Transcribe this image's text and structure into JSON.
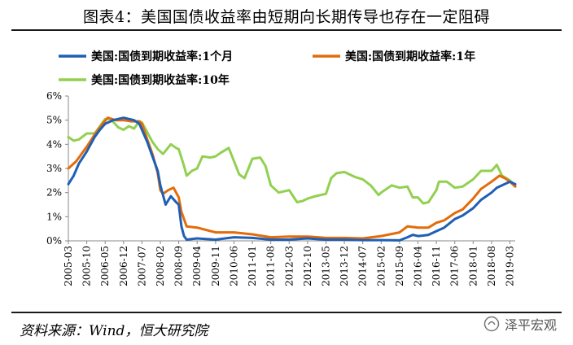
{
  "figure": {
    "title": "图表4：美国国债收益率由短期向长期传导也存在一定阻碍",
    "source": "资料来源：Wind，恒大研究院",
    "watermark": "泽平宏观"
  },
  "chart_data": {
    "type": "line",
    "title": "",
    "xlabel": "",
    "ylabel": "",
    "ylim": [
      0,
      6
    ],
    "ytick_labels": [
      "0%",
      "1%",
      "2%",
      "3%",
      "4%",
      "5%",
      "6%"
    ],
    "x_tick_labels": [
      "2005-03",
      "2005-10",
      "2006-05",
      "2006-12",
      "2007-07",
      "2008-02",
      "2008-09",
      "2009-04",
      "2009-11",
      "2010-06",
      "2011-01",
      "2011-08",
      "2012-03",
      "2012-10",
      "2013-05",
      "2013-12",
      "2014-07",
      "2015-02",
      "2015-09",
      "2016-04",
      "2016-11",
      "2017-06",
      "2018-01",
      "2018-08",
      "2019-03"
    ],
    "x_start": "2005-03",
    "x_end": "2019-05",
    "legend": "top, three entries in two rows",
    "grid": false,
    "series": [
      {
        "name": "美国:国债到期收益率:1个月",
        "color": "#1f5fb4",
        "points": [
          [
            "2005-03",
            2.35
          ],
          [
            "2005-05",
            2.7
          ],
          [
            "2005-07",
            3.2
          ],
          [
            "2005-10",
            3.7
          ],
          [
            "2006-01",
            4.3
          ],
          [
            "2006-03",
            4.6
          ],
          [
            "2006-05",
            4.85
          ],
          [
            "2006-08",
            5.0
          ],
          [
            "2006-10",
            5.05
          ],
          [
            "2006-12",
            5.1
          ],
          [
            "2007-02",
            5.05
          ],
          [
            "2007-04",
            5.0
          ],
          [
            "2007-06",
            4.85
          ],
          [
            "2007-07",
            4.6
          ],
          [
            "2007-09",
            4.1
          ],
          [
            "2007-11",
            3.5
          ],
          [
            "2008-01",
            2.9
          ],
          [
            "2008-02",
            2.3
          ],
          [
            "2008-04",
            1.5
          ],
          [
            "2008-06",
            1.85
          ],
          [
            "2008-08",
            1.6
          ],
          [
            "2008-09",
            1.5
          ],
          [
            "2008-10",
            0.6
          ],
          [
            "2008-11",
            0.2
          ],
          [
            "2008-12",
            0.05
          ],
          [
            "2009-04",
            0.1
          ],
          [
            "2009-11",
            0.05
          ],
          [
            "2010-06",
            0.15
          ],
          [
            "2011-01",
            0.12
          ],
          [
            "2011-08",
            0.05
          ],
          [
            "2012-03",
            0.05
          ],
          [
            "2012-10",
            0.1
          ],
          [
            "2013-05",
            0.05
          ],
          [
            "2013-12",
            0.05
          ],
          [
            "2014-07",
            0.03
          ],
          [
            "2015-02",
            0.03
          ],
          [
            "2015-09",
            0.02
          ],
          [
            "2015-12",
            0.15
          ],
          [
            "2016-02",
            0.25
          ],
          [
            "2016-04",
            0.2
          ],
          [
            "2016-06",
            0.22
          ],
          [
            "2016-08",
            0.25
          ],
          [
            "2016-11",
            0.4
          ],
          [
            "2017-02",
            0.55
          ],
          [
            "2017-06",
            0.9
          ],
          [
            "2017-09",
            1.05
          ],
          [
            "2018-01",
            1.35
          ],
          [
            "2018-04",
            1.7
          ],
          [
            "2018-08",
            2.0
          ],
          [
            "2018-10",
            2.2
          ],
          [
            "2019-01",
            2.35
          ],
          [
            "2019-03",
            2.45
          ],
          [
            "2019-05",
            2.35
          ]
        ]
      },
      {
        "name": "美国:国债到期收益率:1年",
        "color": "#e36c0a",
        "points": [
          [
            "2005-03",
            3.0
          ],
          [
            "2005-06",
            3.3
          ],
          [
            "2005-10",
            3.9
          ],
          [
            "2006-01",
            4.4
          ],
          [
            "2006-04",
            4.85
          ],
          [
            "2006-06",
            5.1
          ],
          [
            "2006-09",
            5.0
          ],
          [
            "2006-12",
            5.0
          ],
          [
            "2007-03",
            4.95
          ],
          [
            "2007-06",
            4.95
          ],
          [
            "2007-07",
            4.85
          ],
          [
            "2007-09",
            4.2
          ],
          [
            "2007-11",
            3.6
          ],
          [
            "2008-01",
            2.8
          ],
          [
            "2008-02",
            2.1
          ],
          [
            "2008-03",
            1.95
          ],
          [
            "2008-05",
            2.1
          ],
          [
            "2008-07",
            2.2
          ],
          [
            "2008-09",
            1.8
          ],
          [
            "2008-10",
            1.2
          ],
          [
            "2008-12",
            0.6
          ],
          [
            "2009-04",
            0.55
          ],
          [
            "2009-11",
            0.35
          ],
          [
            "2010-06",
            0.35
          ],
          [
            "2011-01",
            0.27
          ],
          [
            "2011-08",
            0.15
          ],
          [
            "2012-03",
            0.18
          ],
          [
            "2012-10",
            0.18
          ],
          [
            "2013-05",
            0.12
          ],
          [
            "2013-12",
            0.12
          ],
          [
            "2014-07",
            0.1
          ],
          [
            "2015-02",
            0.2
          ],
          [
            "2015-09",
            0.35
          ],
          [
            "2015-12",
            0.6
          ],
          [
            "2016-04",
            0.55
          ],
          [
            "2016-08",
            0.55
          ],
          [
            "2016-11",
            0.75
          ],
          [
            "2017-02",
            0.85
          ],
          [
            "2017-06",
            1.15
          ],
          [
            "2017-09",
            1.3
          ],
          [
            "2018-01",
            1.75
          ],
          [
            "2018-04",
            2.15
          ],
          [
            "2018-08",
            2.45
          ],
          [
            "2018-11",
            2.7
          ],
          [
            "2019-01",
            2.6
          ],
          [
            "2019-03",
            2.45
          ],
          [
            "2019-05",
            2.25
          ]
        ]
      },
      {
        "name": "美国:国债到期收益率:10年",
        "color": "#92d050",
        "points": [
          [
            "2005-03",
            4.3
          ],
          [
            "2005-05",
            4.15
          ],
          [
            "2005-07",
            4.2
          ],
          [
            "2005-10",
            4.45
          ],
          [
            "2006-01",
            4.45
          ],
          [
            "2006-03",
            4.75
          ],
          [
            "2006-05",
            5.05
          ],
          [
            "2006-07",
            5.05
          ],
          [
            "2006-10",
            4.7
          ],
          [
            "2006-12",
            4.6
          ],
          [
            "2007-02",
            4.75
          ],
          [
            "2007-04",
            4.65
          ],
          [
            "2007-06",
            4.95
          ],
          [
            "2007-07",
            4.9
          ],
          [
            "2007-09",
            4.5
          ],
          [
            "2007-11",
            4.1
          ],
          [
            "2008-01",
            3.8
          ],
          [
            "2008-03",
            3.6
          ],
          [
            "2008-06",
            4.0
          ],
          [
            "2008-08",
            3.85
          ],
          [
            "2008-09",
            3.8
          ],
          [
            "2008-11",
            3.1
          ],
          [
            "2008-12",
            2.7
          ],
          [
            "2009-02",
            2.9
          ],
          [
            "2009-04",
            3.0
          ],
          [
            "2009-06",
            3.5
          ],
          [
            "2009-09",
            3.45
          ],
          [
            "2009-11",
            3.5
          ],
          [
            "2010-01",
            3.65
          ],
          [
            "2010-04",
            3.85
          ],
          [
            "2010-06",
            3.3
          ],
          [
            "2010-08",
            2.75
          ],
          [
            "2010-10",
            2.6
          ],
          [
            "2011-01",
            3.4
          ],
          [
            "2011-04",
            3.45
          ],
          [
            "2011-06",
            3.1
          ],
          [
            "2011-08",
            2.3
          ],
          [
            "2011-11",
            2.0
          ],
          [
            "2012-03",
            2.1
          ],
          [
            "2012-06",
            1.6
          ],
          [
            "2012-08",
            1.65
          ],
          [
            "2012-10",
            1.75
          ],
          [
            "2013-01",
            1.85
          ],
          [
            "2013-05",
            1.95
          ],
          [
            "2013-07",
            2.6
          ],
          [
            "2013-09",
            2.8
          ],
          [
            "2013-12",
            2.85
          ],
          [
            "2014-04",
            2.65
          ],
          [
            "2014-07",
            2.55
          ],
          [
            "2014-10",
            2.3
          ],
          [
            "2015-01",
            1.9
          ],
          [
            "2015-02",
            2.0
          ],
          [
            "2015-06",
            2.3
          ],
          [
            "2015-09",
            2.2
          ],
          [
            "2015-12",
            2.25
          ],
          [
            "2016-02",
            1.8
          ],
          [
            "2016-04",
            1.8
          ],
          [
            "2016-06",
            1.55
          ],
          [
            "2016-08",
            1.6
          ],
          [
            "2016-11",
            2.1
          ],
          [
            "2016-12",
            2.45
          ],
          [
            "2017-03",
            2.45
          ],
          [
            "2017-06",
            2.2
          ],
          [
            "2017-09",
            2.25
          ],
          [
            "2018-01",
            2.55
          ],
          [
            "2018-04",
            2.9
          ],
          [
            "2018-08",
            2.9
          ],
          [
            "2018-10",
            3.15
          ],
          [
            "2018-12",
            2.7
          ],
          [
            "2019-03",
            2.5
          ],
          [
            "2019-05",
            2.3
          ]
        ]
      }
    ]
  }
}
